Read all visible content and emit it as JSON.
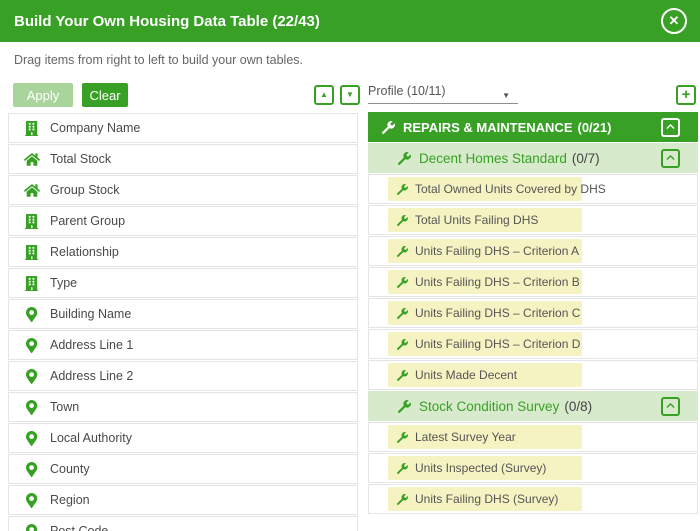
{
  "colors": {
    "green": "#38a125",
    "pale-green": "#a9d49c",
    "light-green": "#d7eacc",
    "yellow": "#f6f3c2",
    "row-border": "#e4e4e4",
    "text-dark": "#4a4a4a",
    "text-gray": "#666666"
  },
  "modal": {
    "title": "Build Your Own Housing Data Table (22/43)",
    "subtitle": "Drag items from right to left to build your own tables.",
    "close_glyph": "✕"
  },
  "toolbar": {
    "apply_label": "Apply",
    "clear_label": "Clear",
    "up_glyph": "▲",
    "down_glyph": "▼",
    "add_glyph": "+",
    "profile_value": "Profile (10/11)",
    "caret_glyph": "▼"
  },
  "left_panel": {
    "items": [
      {
        "label": "Company Name",
        "icon": "building-icon"
      },
      {
        "label": "Total Stock",
        "icon": "home-icon"
      },
      {
        "label": "Group Stock",
        "icon": "home-icon"
      },
      {
        "label": "Parent Group",
        "icon": "building-icon"
      },
      {
        "label": "Relationship",
        "icon": "building-icon"
      },
      {
        "label": "Type",
        "icon": "building-icon"
      },
      {
        "label": "Building Name",
        "icon": "map-pin-icon"
      },
      {
        "label": "Address Line 1",
        "icon": "map-pin-icon"
      },
      {
        "label": "Address Line 2",
        "icon": "map-pin-icon"
      },
      {
        "label": "Town",
        "icon": "map-pin-icon"
      },
      {
        "label": "Local Authority",
        "icon": "map-pin-icon"
      },
      {
        "label": "County",
        "icon": "map-pin-icon"
      },
      {
        "label": "Region",
        "icon": "map-pin-icon"
      },
      {
        "label": "Post Code",
        "icon": "map-pin-icon"
      }
    ]
  },
  "right_panel": {
    "group": {
      "label": "REPAIRS & MAINTENANCE",
      "count": "(0/21)",
      "icon": "wrench-icon",
      "collapse_icon": "chevron-up-icon"
    },
    "sections": [
      {
        "label": "Decent Homes Standard",
        "count": "(0/7)",
        "icon": "wrench-icon",
        "collapse_icon": "chevron-up-icon",
        "items": [
          "Total Owned Units Covered by DHS",
          "Total Units Failing DHS",
          "Units Failing DHS – Criterion A",
          "Units Failing DHS – Criterion B",
          "Units Failing DHS – Criterion C",
          "Units Failing DHS – Criterion D",
          "Units Made Decent"
        ]
      },
      {
        "label": "Stock Condition Survey",
        "count": "(0/8)",
        "icon": "wrench-icon",
        "collapse_icon": "chevron-up-icon",
        "items": [
          "Latest Survey Year",
          "Units Inspected (Survey)",
          "Units Failing DHS (Survey)"
        ]
      }
    ]
  }
}
